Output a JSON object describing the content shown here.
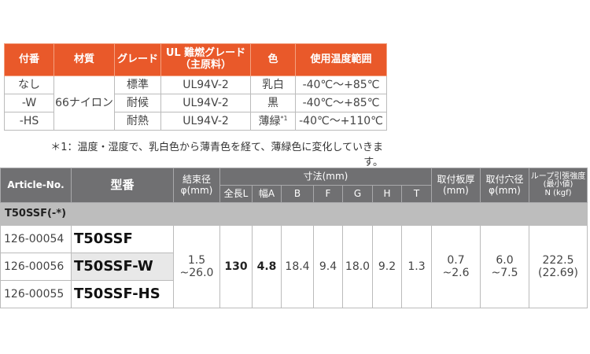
{
  "grade_table": {
    "headers": [
      "付番",
      "材質",
      "グレード",
      "UL 難燃グレード",
      "（主原料）",
      "色",
      "使用温度範囲"
    ],
    "material": "66ナイロン",
    "rows": [
      {
        "suffix": "なし",
        "grade": "標準",
        "ul": "UL94V-2",
        "color": "乳白",
        "note": "",
        "temp": "-40℃～+85℃"
      },
      {
        "suffix": "-W",
        "grade": "耐候",
        "ul": "UL94V-2",
        "color": "黒",
        "note": "",
        "temp": "-40℃～+85℃"
      },
      {
        "suffix": "-HS",
        "grade": "耐熱",
        "ul": "UL94V-2",
        "color": "薄緑",
        "note": "*1",
        "temp": "-40℃～+110℃"
      }
    ],
    "footnote": "＊1：温度・湿度で、乳白色から薄青色を経て、薄緑色に変化していきます。",
    "header_color": "#e9592a"
  },
  "spec_table": {
    "headers": {
      "article": "Article-No.",
      "model": "型番",
      "bundle": "結束径",
      "bundle_unit": "φ(mm)",
      "dims": "寸法(mm)",
      "L": "全長L",
      "A": "幅A",
      "B": "B",
      "F": "F",
      "G": "G",
      "H": "H",
      "T": "T",
      "plate": "取付板厚",
      "plate_unit": "(mm)",
      "hole": "取付穴径",
      "hole_unit": "φ(mm)",
      "loop": "ループ引張強度",
      "loop_sub": "(最小値)",
      "loop_unit": "N (kgf)"
    },
    "group": "T50SSF(-*)",
    "rows": [
      {
        "article": "126-00054",
        "model": "T50SSF"
      },
      {
        "article": "126-00056",
        "model": "T50SSF-W"
      },
      {
        "article": "126-00055",
        "model": "T50SSF-HS"
      }
    ],
    "shared": {
      "bundle_min": "1.5",
      "bundle_max": "~26.0",
      "L": "130",
      "A": "4.8",
      "B": "18.4",
      "F": "9.4",
      "G": "18.0",
      "H": "9.2",
      "T": "1.3",
      "plate_min": "0.7",
      "plate_max": "~2.6",
      "hole_min": "6.0",
      "hole_max": "~7.5",
      "loop_n": "222.5",
      "loop_kgf": "(22.69)"
    },
    "header_color": "#707072",
    "group_color": "#bdbdbd"
  }
}
